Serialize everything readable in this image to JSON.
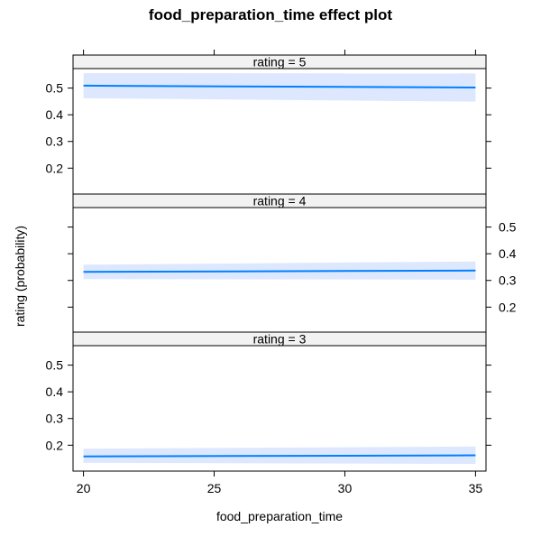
{
  "chart_data": {
    "type": "line",
    "title": "food_preparation_time effect plot",
    "xlabel": "food_preparation_time",
    "ylabel": "rating (probability)",
    "xlim": [
      19.6,
      35.4
    ],
    "ylim": [
      0.103,
      0.573
    ],
    "x_ticks": [
      20,
      25,
      30,
      35
    ],
    "y_ticks": [
      0.2,
      0.3,
      0.4,
      0.5
    ],
    "colors": {
      "line": "#0080ff",
      "band": "#dde8ff",
      "strip": "#f2f2f2"
    },
    "panels": [
      {
        "strip_label": "rating = 5",
        "ytick_side": "left",
        "x": [
          20,
          35
        ],
        "fit": [
          0.509,
          0.502
        ],
        "lower": [
          0.462,
          0.449
        ],
        "upper": [
          0.556,
          0.555
        ]
      },
      {
        "strip_label": "rating = 4",
        "ytick_side": "right",
        "x": [
          20,
          35
        ],
        "fit": [
          0.332,
          0.337
        ],
        "lower": [
          0.305,
          0.303
        ],
        "upper": [
          0.359,
          0.371
        ]
      },
      {
        "strip_label": "rating = 3",
        "ytick_side": "left",
        "x": [
          20,
          35
        ],
        "fit": [
          0.158,
          0.162
        ],
        "lower": [
          0.134,
          0.13
        ],
        "upper": [
          0.187,
          0.195
        ]
      }
    ]
  }
}
